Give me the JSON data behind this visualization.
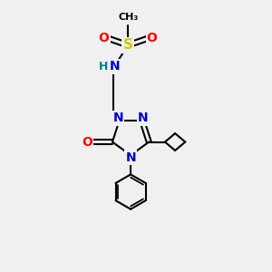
{
  "bg_color": "#f0f0f0",
  "atom_colors": {
    "C": "#000000",
    "N": "#0000cc",
    "O": "#ff0000",
    "S": "#cccc00",
    "H": "#008080"
  },
  "bond_color": "#000000",
  "bond_width": 1.5,
  "figsize": [
    3.0,
    3.0
  ],
  "dpi": 100
}
